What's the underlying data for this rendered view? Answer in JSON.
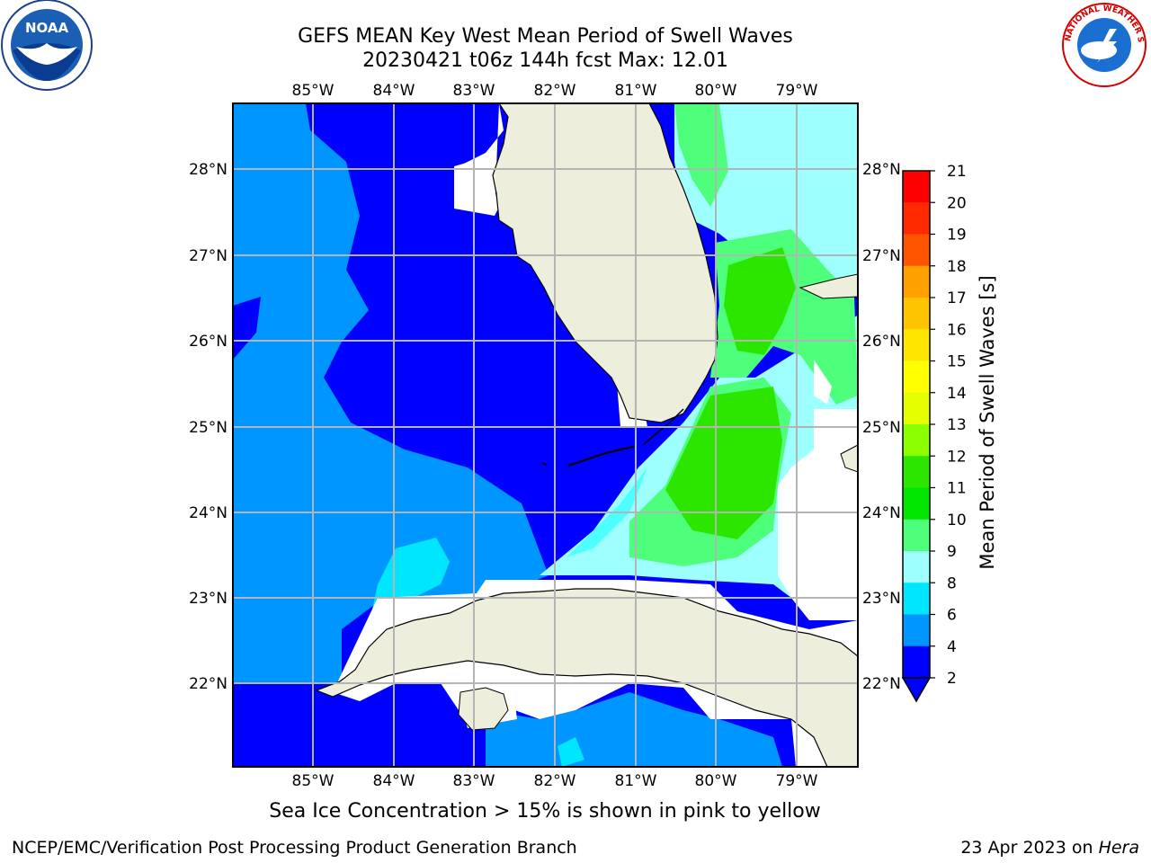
{
  "header": {
    "title_line1": "GEFS MEAN Key West Mean Period of Swell Waves",
    "title_line2": "20230421 t06z 144h fcst   Max: 12.01"
  },
  "map": {
    "lon_labels": [
      "85°W",
      "84°W",
      "83°W",
      "82°W",
      "81°W",
      "80°W",
      "79°W"
    ],
    "lat_labels": [
      "28°N",
      "27°N",
      "26°N",
      "25°N",
      "24°N",
      "23°N",
      "22°N"
    ],
    "extent": {
      "lon": [
        -86.0,
        -78.25
      ],
      "lat": [
        21.0,
        28.8
      ]
    }
  },
  "colorbar": {
    "label": "Mean Period of Swell Waves [s]",
    "ticks": [
      "21",
      "20",
      "19",
      "18",
      "17",
      "16",
      "15",
      "14",
      "13",
      "12",
      "11",
      "10",
      "9",
      "8",
      "6",
      "4",
      "2"
    ],
    "colors_top_to_bottom": [
      "#ff0000",
      "#ff2a00",
      "#ff5500",
      "#ff7f00",
      "#ffa000",
      "#ffc400",
      "#ffe600",
      "#ffff00",
      "#e6ff00",
      "#c8ff00",
      "#8cff00",
      "#2de600",
      "#00e600",
      "#4dff7a",
      "#9effff",
      "#4dffff",
      "#00e6ff",
      "#0096ff",
      "#0000ff"
    ]
  },
  "logos": {
    "noaa_text": "NOAA",
    "nws_text": "NATIONAL WEATHER SERVICE"
  },
  "caption": "Sea Ice Concentration > 15% is shown in pink to yellow",
  "footer": {
    "left": "NCEP/EMC/Verification Post Processing Product Generation Branch",
    "right_date": "23 Apr 2023 on ",
    "right_host": "Hera"
  }
}
